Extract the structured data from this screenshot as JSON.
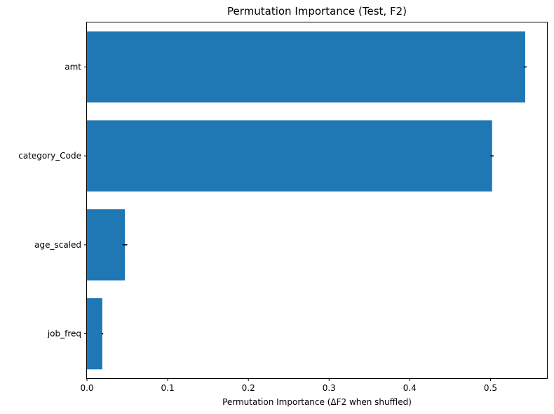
{
  "chart_data": {
    "type": "bar",
    "orientation": "horizontal",
    "title": "Permutation Importance (Test, F2)",
    "xlabel": "Permutation Importance (ΔF2 when shuffled)",
    "ylabel": "",
    "categories": [
      "amt",
      "category_Code",
      "age_scaled",
      "job_freq"
    ],
    "values": [
      0.543,
      0.502,
      0.047,
      0.019
    ],
    "errors": [
      0.002,
      0.002,
      0.003,
      0.001
    ],
    "xlim": [
      0,
      0.57
    ],
    "xticks": [
      0.0,
      0.1,
      0.2,
      0.3,
      0.4,
      0.5
    ],
    "xtick_labels": [
      "0.0",
      "0.1",
      "0.2",
      "0.3",
      "0.4",
      "0.5"
    ],
    "grid": false,
    "bar_color": "#1f77b4",
    "error_color": "#000000"
  }
}
